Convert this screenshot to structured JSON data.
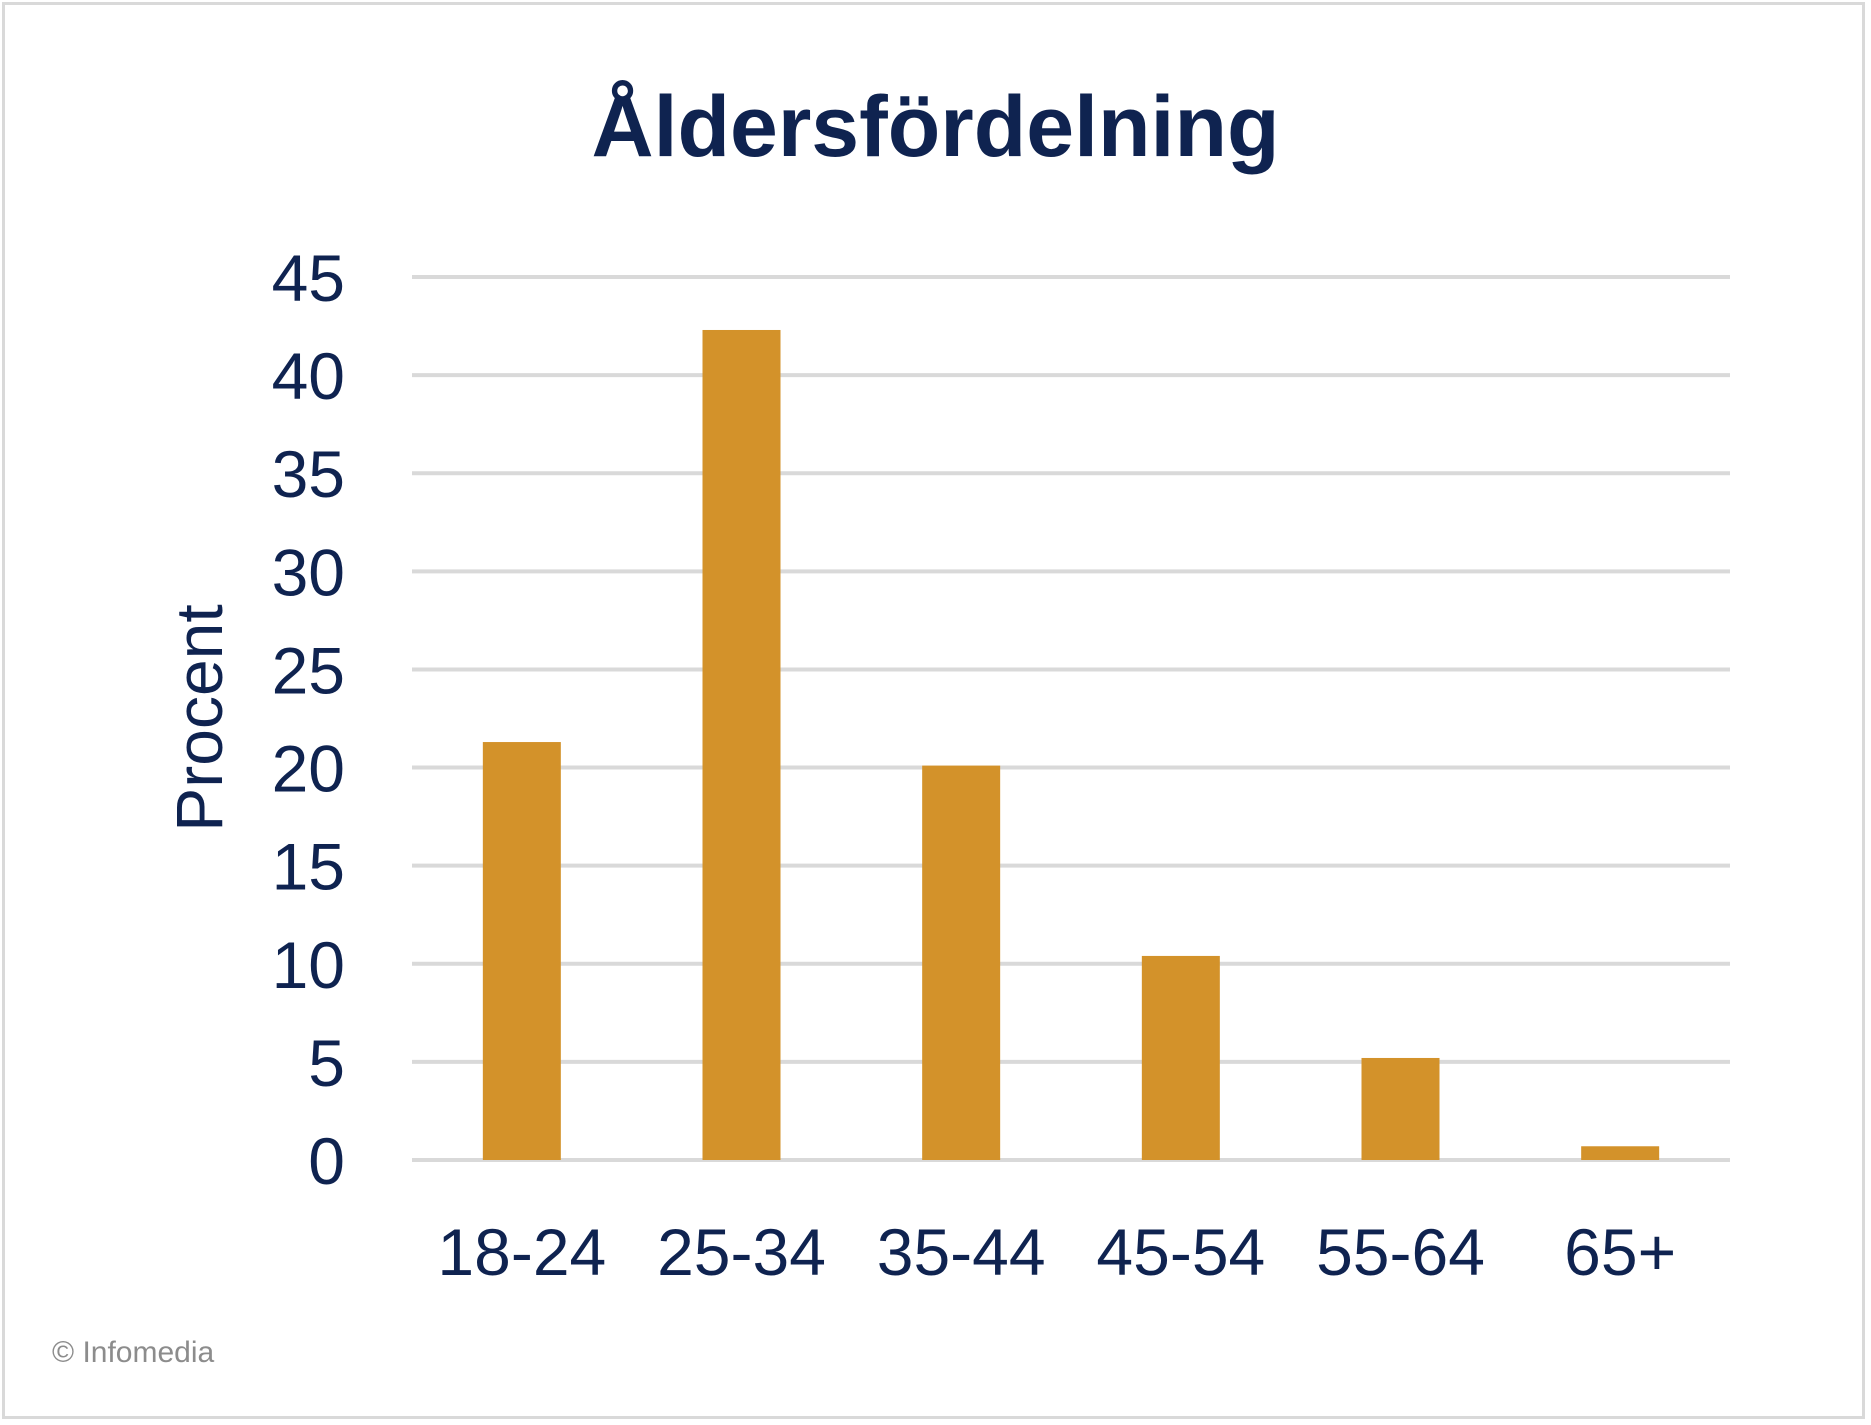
{
  "chart_data": {
    "type": "bar",
    "title": "Åldersfördelning",
    "xlabel": "",
    "ylabel": "Procent",
    "categories": [
      "18-24",
      "25-34",
      "35-44",
      "45-54",
      "55-64",
      "65+"
    ],
    "values": [
      21.3,
      42.3,
      20.1,
      10.4,
      5.2,
      0.7
    ],
    "ylim": [
      0,
      45
    ],
    "yticks": [
      "0",
      "5",
      "10",
      "15",
      "20",
      "25",
      "30",
      "35",
      "40",
      "45"
    ],
    "grid": true,
    "legend": "none",
    "colors": {
      "bar": "#D3922A",
      "text": "#0F2350",
      "grid": "#D9D9D9"
    }
  },
  "footer": {
    "copyright": "© Infomedia"
  }
}
